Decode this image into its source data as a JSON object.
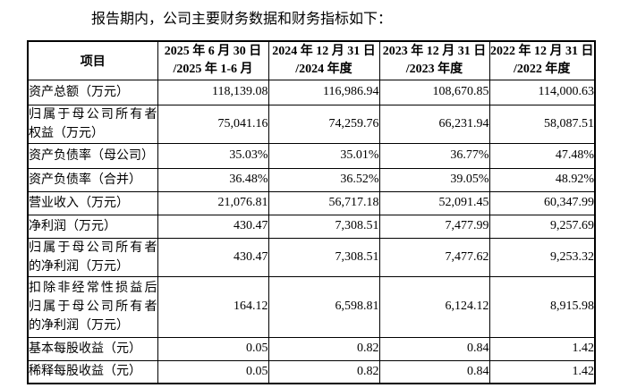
{
  "page": {
    "title": "报告期内，公司主要财务数据和财务指标如下："
  },
  "table": {
    "columns": {
      "item": "项目",
      "periods": [
        {
          "date": "2025 年 6 月 30 日",
          "period": "/2025 年 1-6 月"
        },
        {
          "date": "2024 年 12 月 31 日",
          "period": "/2024 年度"
        },
        {
          "date": "2023 年 12 月 31 日",
          "period": "/2023 年度"
        },
        {
          "date": "2022 年 12 月 31 日",
          "period": "/2022 年度"
        }
      ]
    },
    "rows": [
      {
        "label": "资产总额（万元）",
        "label_lines": [
          "资产总额（万元）"
        ],
        "values": [
          "118,139.08",
          "116,986.94",
          "108,670.85",
          "114,000.63"
        ]
      },
      {
        "label": "归属于母公司所有者权益（万元）",
        "label_lines": [
          "归属于母公司所有者",
          "权益（万元）"
        ],
        "values": [
          "75,041.16",
          "74,259.76",
          "66,231.94",
          "58,087.51"
        ]
      },
      {
        "label": "资产负债率（母公司）",
        "label_lines": [
          "资产负债率（母公司）"
        ],
        "values": [
          "35.03%",
          "35.01%",
          "36.77%",
          "47.48%"
        ]
      },
      {
        "label": "资产负债率（合并）",
        "label_lines": [
          "资产负债率（合并）"
        ],
        "values": [
          "36.48%",
          "36.52%",
          "39.05%",
          "48.92%"
        ]
      },
      {
        "label": "营业收入（万元）",
        "label_lines": [
          "营业收入（万元）"
        ],
        "values": [
          "21,076.81",
          "56,717.18",
          "52,091.45",
          "60,347.99"
        ]
      },
      {
        "label": "净利润（万元）",
        "label_lines": [
          "净利润（万元）"
        ],
        "values": [
          "430.47",
          "7,308.51",
          "7,477.99",
          "9,257.69"
        ]
      },
      {
        "label": "归属于母公司所有者的净利润（万元）",
        "label_lines": [
          "归属于母公司所有者",
          "的净利润（万元）"
        ],
        "values": [
          "430.47",
          "7,308.51",
          "7,477.62",
          "9,253.32"
        ]
      },
      {
        "label": "扣除非经常性损益后归属于母公司所有者的净利润（万元）",
        "label_lines": [
          "扣除非经常性损益后",
          "归属于母公司所有者",
          "的净利润（万元）"
        ],
        "values": [
          "164.12",
          "6,598.81",
          "6,124.12",
          "8,915.98"
        ]
      },
      {
        "label": "基本每股收益（元）",
        "label_lines": [
          "基本每股收益（元）"
        ],
        "values": [
          "0.05",
          "0.82",
          "0.84",
          "1.42"
        ]
      },
      {
        "label": "稀释每股收益（元）",
        "label_lines": [
          "稀释每股收益（元）"
        ],
        "values": [
          "0.05",
          "0.82",
          "0.84",
          "1.42"
        ]
      }
    ]
  }
}
